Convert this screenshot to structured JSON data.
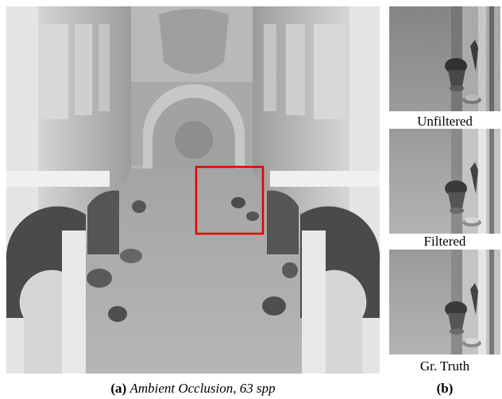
{
  "figure": {
    "panel_a": {
      "label": "(a)",
      "caption": "Ambient Occlusion, 63 spp"
    },
    "panel_b": {
      "label": "(b)",
      "insets": [
        {
          "label": "Unfiltered"
        },
        {
          "label": "Filtered"
        },
        {
          "label": "Gr. Truth"
        }
      ]
    }
  }
}
